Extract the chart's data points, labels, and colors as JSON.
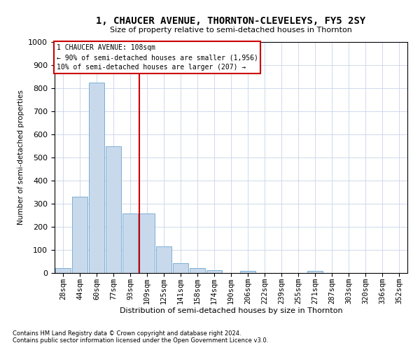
{
  "title": "1, CHAUCER AVENUE, THORNTON-CLEVELEYS, FY5 2SY",
  "subtitle": "Size of property relative to semi-detached houses in Thornton",
  "xlabel": "Distribution of semi-detached houses by size in Thornton",
  "ylabel": "Number of semi-detached properties",
  "categories": [
    "28sqm",
    "44sqm",
    "60sqm",
    "77sqm",
    "93sqm",
    "109sqm",
    "125sqm",
    "141sqm",
    "158sqm",
    "174sqm",
    "190sqm",
    "206sqm",
    "222sqm",
    "239sqm",
    "255sqm",
    "271sqm",
    "287sqm",
    "303sqm",
    "320sqm",
    "336sqm",
    "352sqm"
  ],
  "values": [
    22,
    330,
    825,
    548,
    258,
    258,
    115,
    42,
    20,
    13,
    0,
    10,
    0,
    0,
    0,
    10,
    0,
    0,
    0,
    0,
    0
  ],
  "bar_color": "#c9d9ec",
  "bar_edge_color": "#7bafd4",
  "vline_pos": 4.525,
  "highlight_label": "1 CHAUCER AVENUE: 108sqm",
  "highlight_smaller": "← 90% of semi-detached houses are smaller (1,956)",
  "highlight_larger": "10% of semi-detached houses are larger (207) →",
  "vline_color": "#cc0000",
  "ylim": [
    0,
    1000
  ],
  "yticks": [
    0,
    100,
    200,
    300,
    400,
    500,
    600,
    700,
    800,
    900,
    1000
  ],
  "footnote1": "Contains HM Land Registry data © Crown copyright and database right 2024.",
  "footnote2": "Contains public sector information licensed under the Open Government Licence v3.0.",
  "fig_width": 6.0,
  "fig_height": 5.0,
  "background_color": "#ffffff",
  "grid_color": "#c8d4e8",
  "title_fontsize": 10,
  "subtitle_fontsize": 8,
  "xlabel_fontsize": 8,
  "ylabel_fontsize": 7.5,
  "tick_fontsize": 7.5,
  "annot_fontsize": 7,
  "footnote_fontsize": 6
}
